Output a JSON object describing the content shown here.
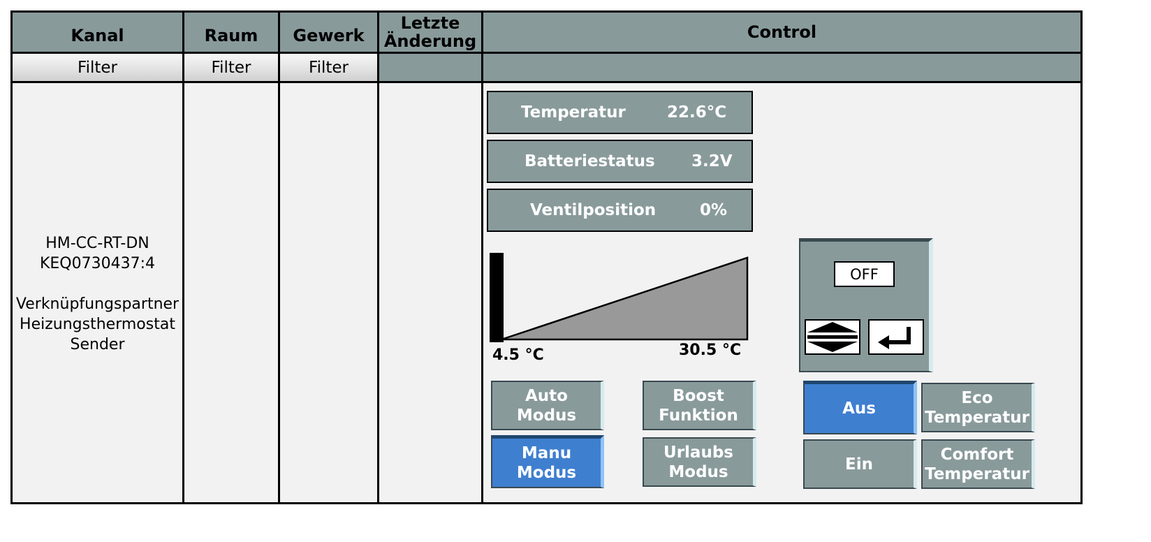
{
  "header": {
    "kanal": "Kanal",
    "raum": "Raum",
    "gewerk": "Gewerk",
    "letzte_aenderung_1": "Letzte",
    "letzte_aenderung_2": "Änderung",
    "control": "Control"
  },
  "filters": {
    "kanal": "Filter",
    "raum": "Filter",
    "gewerk": "Filter"
  },
  "channel": {
    "line1": "HM-CC-RT-DN",
    "line2": "KEQ0730437:4",
    "line3": "Verknüpfungspartner",
    "line4": "Heizungsthermostat",
    "line5": "Sender"
  },
  "status": {
    "temperatur_label": "Temperatur",
    "temperatur_value": "22.6°C",
    "batterie_label": "Batteriestatus",
    "batterie_value": "3.2V",
    "ventil_label": "Ventilposition",
    "ventil_value": "0%"
  },
  "slider": {
    "min_label": "4.5 °C",
    "max_label": "30.5 °C",
    "level_fraction": 0
  },
  "setpoint": {
    "display": "OFF"
  },
  "modes": {
    "auto_1": "Auto",
    "auto_2": "Modus",
    "manu_1": "Manu",
    "manu_2": "Modus",
    "boost_1": "Boost",
    "boost_2": "Funktion",
    "urlaub_1": "Urlaubs",
    "urlaub_2": "Modus",
    "aus": "Aus",
    "ein": "Ein",
    "eco_1": "Eco",
    "eco_2": "Temperatur",
    "comfort_1": "Comfort",
    "comfort_2": "Temperatur"
  },
  "colors": {
    "header_bg": "#899a9b",
    "active_button": "#3f7fcf",
    "ramp_fill": "#999999"
  }
}
